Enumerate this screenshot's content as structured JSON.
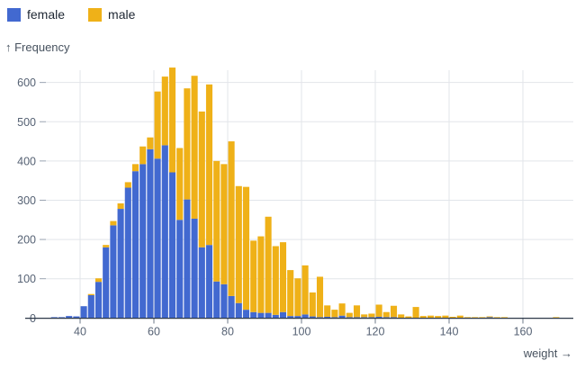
{
  "legend": {
    "items": [
      {
        "label": "female",
        "color": "#4269d0"
      },
      {
        "label": "male",
        "color": "#efb118"
      }
    ]
  },
  "chart_data": {
    "type": "bar",
    "subtype": "stacked-histogram",
    "title": "",
    "xlabel": "weight →",
    "ylabel": "↑ Frequency",
    "bin_width": 2,
    "x_ticks": [
      40,
      60,
      80,
      100,
      120,
      140,
      160
    ],
    "y_ticks": [
      0,
      100,
      200,
      300,
      400,
      500,
      600
    ],
    "xlim": [
      25,
      175
    ],
    "ylim": [
      0,
      650
    ],
    "grid": true,
    "legend_position": "top-left",
    "x": [
      32,
      34,
      36,
      38,
      40,
      42,
      44,
      46,
      48,
      50,
      52,
      54,
      56,
      58,
      60,
      62,
      64,
      66,
      68,
      70,
      72,
      74,
      76,
      78,
      80,
      82,
      84,
      86,
      88,
      90,
      92,
      94,
      96,
      98,
      100,
      102,
      104,
      106,
      108,
      110,
      112,
      114,
      116,
      118,
      120,
      122,
      124,
      126,
      128,
      130,
      132,
      134,
      136,
      138,
      140,
      142,
      144,
      146,
      148,
      150,
      152,
      154,
      156,
      158,
      160,
      162,
      164,
      166,
      168
    ],
    "series": [
      {
        "name": "female",
        "color": "#4269d0",
        "values": [
          2,
          2,
          5,
          4,
          30,
          58,
          92,
          180,
          236,
          278,
          332,
          374,
          392,
          430,
          406,
          440,
          371,
          250,
          302,
          253,
          180,
          186,
          93,
          86,
          56,
          38,
          21,
          15,
          13,
          13,
          8,
          15,
          5,
          5,
          9,
          4,
          2,
          3,
          2,
          6,
          2,
          2,
          1,
          1,
          3,
          1,
          1,
          0,
          0,
          0,
          0,
          0,
          0,
          0,
          0,
          0,
          0,
          0,
          0,
          1,
          0,
          0,
          0,
          0,
          0,
          0,
          0,
          0,
          0
        ]
      },
      {
        "name": "male",
        "color": "#efb118",
        "values": [
          0,
          0,
          0,
          0,
          0,
          3,
          9,
          6,
          11,
          14,
          14,
          18,
          45,
          30,
          171,
          175,
          267,
          183,
          283,
          364,
          346,
          409,
          307,
          306,
          394,
          298,
          313,
          182,
          195,
          245,
          175,
          178,
          117,
          96,
          125,
          61,
          103,
          29,
          19,
          31,
          11,
          30,
          7,
          9,
          31,
          13,
          29,
          9,
          4,
          28,
          5,
          6,
          5,
          6,
          3,
          6,
          2,
          2,
          2,
          1,
          2,
          2,
          0,
          0,
          0,
          0,
          0,
          0,
          2
        ]
      }
    ]
  },
  "style": {
    "grid_color": "#e2e5ea",
    "tick_color": "#9aa4b1",
    "x_tick_color": "#6e7a8a",
    "baseline_color": "#2c3848"
  }
}
